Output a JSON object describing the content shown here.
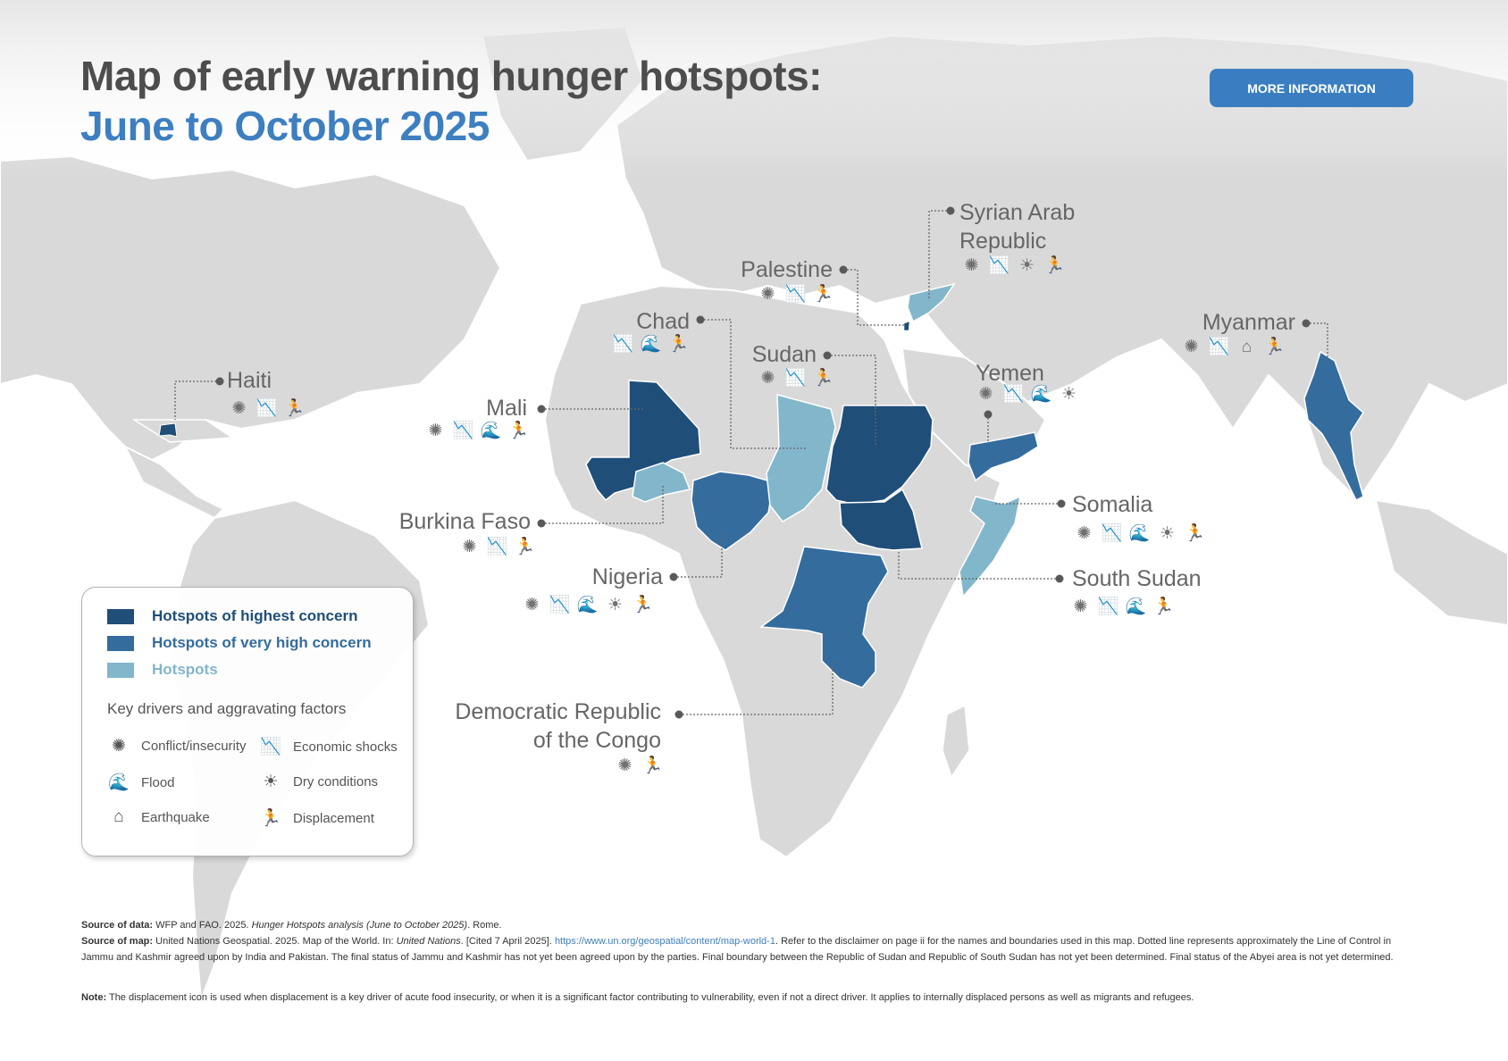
{
  "title": {
    "line1": "Map of early warning hunger hotspots:",
    "line2": "June to October 2025"
  },
  "button": {
    "label": "MORE INFORMATION"
  },
  "colors": {
    "highest": "#1f4e79",
    "very_high": "#346c9e",
    "hotspot": "#82b6cb",
    "land": "#d9d9d9",
    "accent": "#3a7ec1"
  },
  "icon_glyphs": {
    "conflict": "✺",
    "economic": "📉",
    "flood": "🌊",
    "dry": "☀",
    "earthquake": "⌂",
    "displacement": "🏃"
  },
  "countries": [
    {
      "id": "haiti",
      "name": "Haiti",
      "level": "highest",
      "drivers": [
        "conflict",
        "economic",
        "displacement"
      ]
    },
    {
      "id": "mali",
      "name": "Mali",
      "level": "highest",
      "drivers": [
        "conflict",
        "economic",
        "flood",
        "displacement"
      ]
    },
    {
      "id": "chad",
      "name": "Chad",
      "level": "hotspot",
      "drivers": [
        "economic",
        "flood",
        "displacement"
      ]
    },
    {
      "id": "palestine",
      "name": "Palestine",
      "level": "highest",
      "drivers": [
        "conflict",
        "economic",
        "displacement"
      ]
    },
    {
      "id": "syria",
      "name": "Syrian Arab Republic",
      "level": "hotspot",
      "drivers": [
        "conflict",
        "economic",
        "dry",
        "displacement"
      ]
    },
    {
      "id": "sudan",
      "name": "Sudan",
      "level": "highest",
      "drivers": [
        "conflict",
        "economic",
        "displacement"
      ]
    },
    {
      "id": "yemen",
      "name": "Yemen",
      "level": "very_high",
      "drivers": [
        "conflict",
        "economic",
        "flood",
        "dry"
      ]
    },
    {
      "id": "myanmar",
      "name": "Myanmar",
      "level": "very_high",
      "drivers": [
        "conflict",
        "economic",
        "earthquake",
        "displacement"
      ]
    },
    {
      "id": "burkina",
      "name": "Burkina Faso",
      "level": "hotspot",
      "drivers": [
        "conflict",
        "economic",
        "displacement"
      ]
    },
    {
      "id": "nigeria",
      "name": "Nigeria",
      "level": "very_high",
      "drivers": [
        "conflict",
        "economic",
        "flood",
        "dry",
        "displacement"
      ]
    },
    {
      "id": "somalia",
      "name": "Somalia",
      "level": "hotspot",
      "drivers": [
        "conflict",
        "economic",
        "flood",
        "dry",
        "displacement"
      ]
    },
    {
      "id": "southsudan",
      "name": "South Sudan",
      "level": "highest",
      "drivers": [
        "conflict",
        "economic",
        "flood",
        "displacement"
      ]
    },
    {
      "id": "drc",
      "name": "Democratic Republic of the Congo",
      "line1": "Democratic Republic",
      "line2": "of the Congo",
      "level": "very_high",
      "drivers": [
        "conflict",
        "displacement"
      ]
    }
  ],
  "legend": {
    "levels": [
      {
        "key": "highest",
        "label": "Hotspots of highest concern"
      },
      {
        "key": "very_high",
        "label": "Hotspots of very high concern"
      },
      {
        "key": "hotspot",
        "label": "Hotspots"
      }
    ],
    "drivers_title": "Key drivers and aggravating factors",
    "drivers": [
      {
        "key": "conflict",
        "label": "Conflict/insecurity"
      },
      {
        "key": "economic",
        "label": "Economic shocks"
      },
      {
        "key": "flood",
        "label": "Flood"
      },
      {
        "key": "dry",
        "label": "Dry conditions"
      },
      {
        "key": "earthquake",
        "label": "Earthquake"
      },
      {
        "key": "displacement",
        "label": "Displacement"
      }
    ]
  },
  "footer": {
    "data_label": "Source of data:",
    "data_text1": "WFP and FAO. 2025.",
    "data_italic": "Hunger Hotspots analysis (June to October 2025)",
    "data_text2": ". Rome.",
    "map_label": "Source of map:",
    "map_text1": "United Nations Geospatial. 2025. Map of the World. In:",
    "map_italic": "United Nations",
    "map_text2": ". [Cited 7 April 2025].",
    "map_link": "https://www.un.org/geospatial/content/map-world-1",
    "map_text3": ". Refer to the disclaimer on page ii for the names and boundaries used in this map. Dotted line represents approximately the Line of Control in Jammu and Kashmir agreed upon by India and Pakistan. The final status of Jammu and Kashmir has not yet been agreed upon by the parties. Final boundary between the Republic of Sudan and Republic of South Sudan has not yet been determined. Final status of the Abyei area is not yet determined.",
    "note_label": "Note:",
    "note_text": "The displacement icon is used when displacement is a key driver of acute food insecurity, or when it is a significant factor contributing to vulnerability, even if not a direct driver. It applies to internally displaced persons as well as migrants and refugees."
  }
}
